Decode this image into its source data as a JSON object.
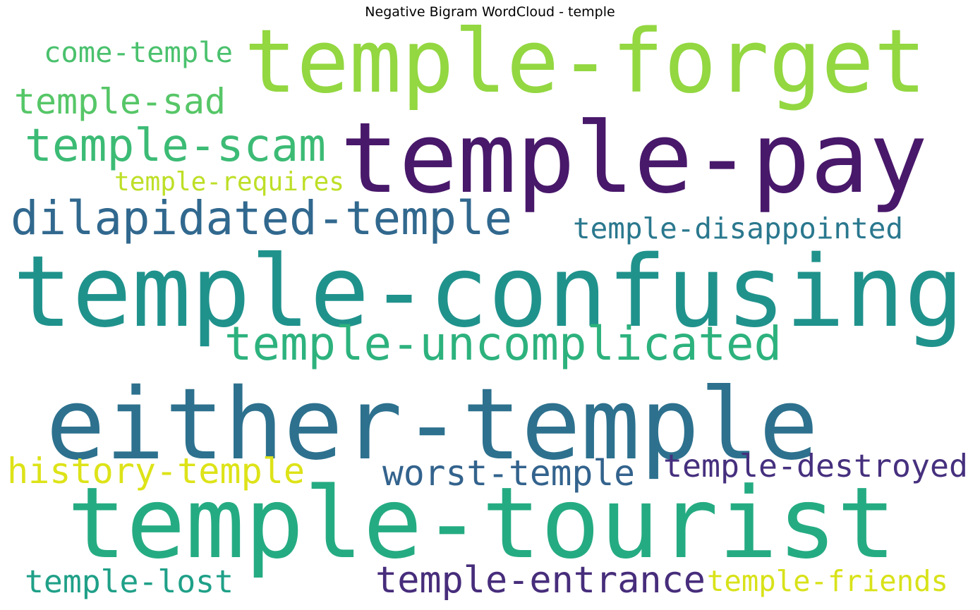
{
  "chart_data": {
    "type": "wordcloud",
    "title": "Negative Bigram WordCloud - temple",
    "words": [
      {
        "text": "temple-confusing",
        "color": "#20928c"
      },
      {
        "text": "temple-tourist",
        "color": "#25ab82"
      },
      {
        "text": "either-temple",
        "color": "#2d718e"
      },
      {
        "text": "temple-pay",
        "color": "#48186a"
      },
      {
        "text": "temple-forget",
        "color": "#93d741"
      },
      {
        "text": "temple-uncomplicated",
        "color": "#2db27d"
      },
      {
        "text": "dilapidated-temple",
        "color": "#31688e"
      },
      {
        "text": "temple-scam",
        "color": "#3cbb75"
      },
      {
        "text": "history-temple",
        "color": "#dde318"
      },
      {
        "text": "temple-destroyed",
        "color": "#46307e"
      },
      {
        "text": "worst-temple",
        "color": "#33638d"
      },
      {
        "text": "temple-entrance",
        "color": "#472d7b"
      },
      {
        "text": "temple-sad",
        "color": "#56c667"
      },
      {
        "text": "temple-lost",
        "color": "#1fa088"
      },
      {
        "text": "come-temple",
        "color": "#4ac16d"
      },
      {
        "text": "temple-friends",
        "color": "#d8e219"
      },
      {
        "text": "temple-disappointed",
        "color": "#2a788e"
      },
      {
        "text": "temple-requires",
        "color": "#bddf26"
      }
    ]
  }
}
